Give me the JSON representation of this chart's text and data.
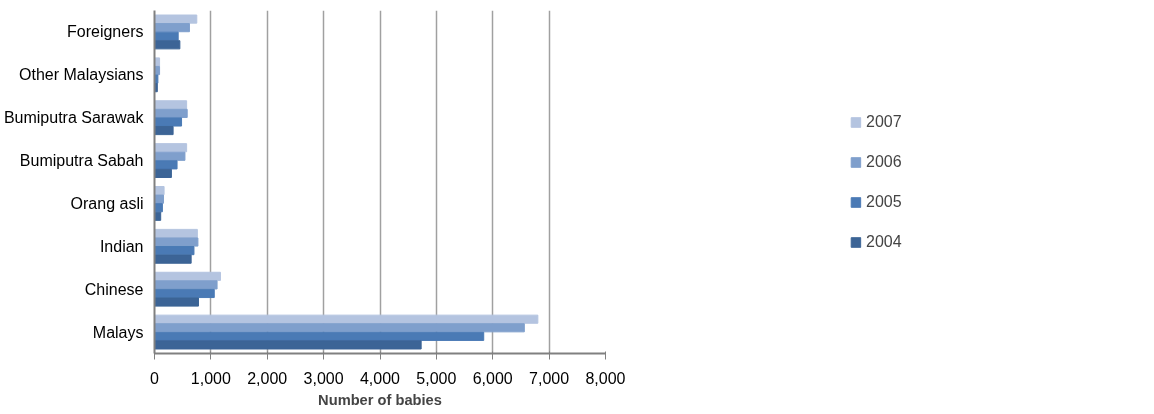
{
  "chart_data": {
    "type": "bar",
    "orientation": "horizontal",
    "xlabel": "Number of babies",
    "categories": [
      "Foreigners",
      "Other Malaysians",
      "Bumiputra Sarawak",
      "Bumiputra Sabah",
      "Orang asli",
      "Indian",
      "Chinese",
      "Malays"
    ],
    "series": [
      {
        "name": "2007",
        "color": "#b4c4e0",
        "values": [
          750,
          90,
          570,
          570,
          170,
          760,
          1170,
          6800
        ]
      },
      {
        "name": "2006",
        "color": "#7f9fcc",
        "values": [
          620,
          90,
          580,
          540,
          160,
          770,
          1110,
          6560
        ]
      },
      {
        "name": "2005",
        "color": "#4a7ab5",
        "values": [
          420,
          60,
          480,
          400,
          140,
          700,
          1060,
          5840
        ]
      },
      {
        "name": "2004",
        "color": "#3c6496",
        "values": [
          450,
          50,
          330,
          300,
          110,
          650,
          780,
          4730
        ]
      }
    ],
    "xlim": [
      0,
      8000
    ],
    "xticks": [
      0,
      {
        "value": 1000,
        "label": "1,000"
      },
      {
        "value": 2000,
        "label": "2,000"
      },
      {
        "value": 3000,
        "label": "3,000"
      },
      {
        "value": 4000,
        "label": "4,000"
      },
      {
        "value": 5000,
        "label": "5,000"
      },
      {
        "value": 6000,
        "label": "6,000"
      },
      {
        "value": 7000,
        "label": "7,000"
      },
      {
        "value": 8000,
        "label": "8,000"
      }
    ],
    "grid": "x",
    "legend": "right"
  }
}
